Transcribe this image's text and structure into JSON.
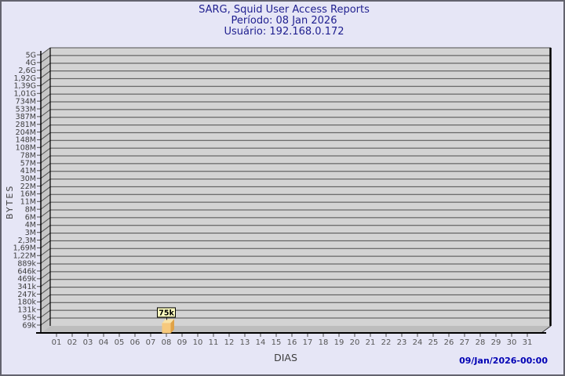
{
  "chart_data": {
    "type": "bar",
    "title": "SARG, Squid User Access Reports",
    "subtitle_period": "Período: 08 Jan 2026",
    "subtitle_user": "Usuário: 192.168.0.172",
    "xlabel": "DIAS",
    "ylabel": "BYTES",
    "footer_timestamp": "09/Jan/2026-00:00",
    "y_scale": "log",
    "grid": "horizontal-only",
    "style": "3d-box",
    "y_tick_labels": [
      "5G",
      "4G",
      "2,6G",
      "1,92G",
      "1,39G",
      "1,01G",
      "734M",
      "533M",
      "387M",
      "281M",
      "204M",
      "148M",
      "108M",
      "78M",
      "57M",
      "41M",
      "30M",
      "22M",
      "16M",
      "11M",
      "8M",
      "6M",
      "4M",
      "3M",
      "2,3M",
      "1,69M",
      "1,22M",
      "889k",
      "646k",
      "469k",
      "341k",
      "247k",
      "180k",
      "131k",
      "95k",
      "69k"
    ],
    "x_tick_labels": [
      "01",
      "02",
      "03",
      "04",
      "05",
      "06",
      "07",
      "08",
      "09",
      "10",
      "11",
      "12",
      "13",
      "14",
      "15",
      "16",
      "17",
      "18",
      "19",
      "20",
      "21",
      "22",
      "23",
      "24",
      "25",
      "26",
      "27",
      "28",
      "29",
      "30",
      "31"
    ],
    "series": [
      {
        "name": "bytes-per-day",
        "points": [
          {
            "x": "08",
            "value_bytes": 75000,
            "label": "75k"
          }
        ]
      }
    ],
    "colors": {
      "background": "#e6e6f6",
      "plot_background": "#d3d3d3",
      "side_wall": "#c6c6c6",
      "floor": "#bdbdbd",
      "gridline": "#4d4d4d",
      "axis": "#000000",
      "title_text": "#1f1f8f",
      "timestamp_text": "#0000b4",
      "tick_text": "#4a4a4a",
      "bar_front": "#f7c97d",
      "bar_side": "#e0a246",
      "bar_top": "#fae3a7",
      "value_box_bg": "#ffffc0",
      "value_box_border": "#000000"
    }
  }
}
